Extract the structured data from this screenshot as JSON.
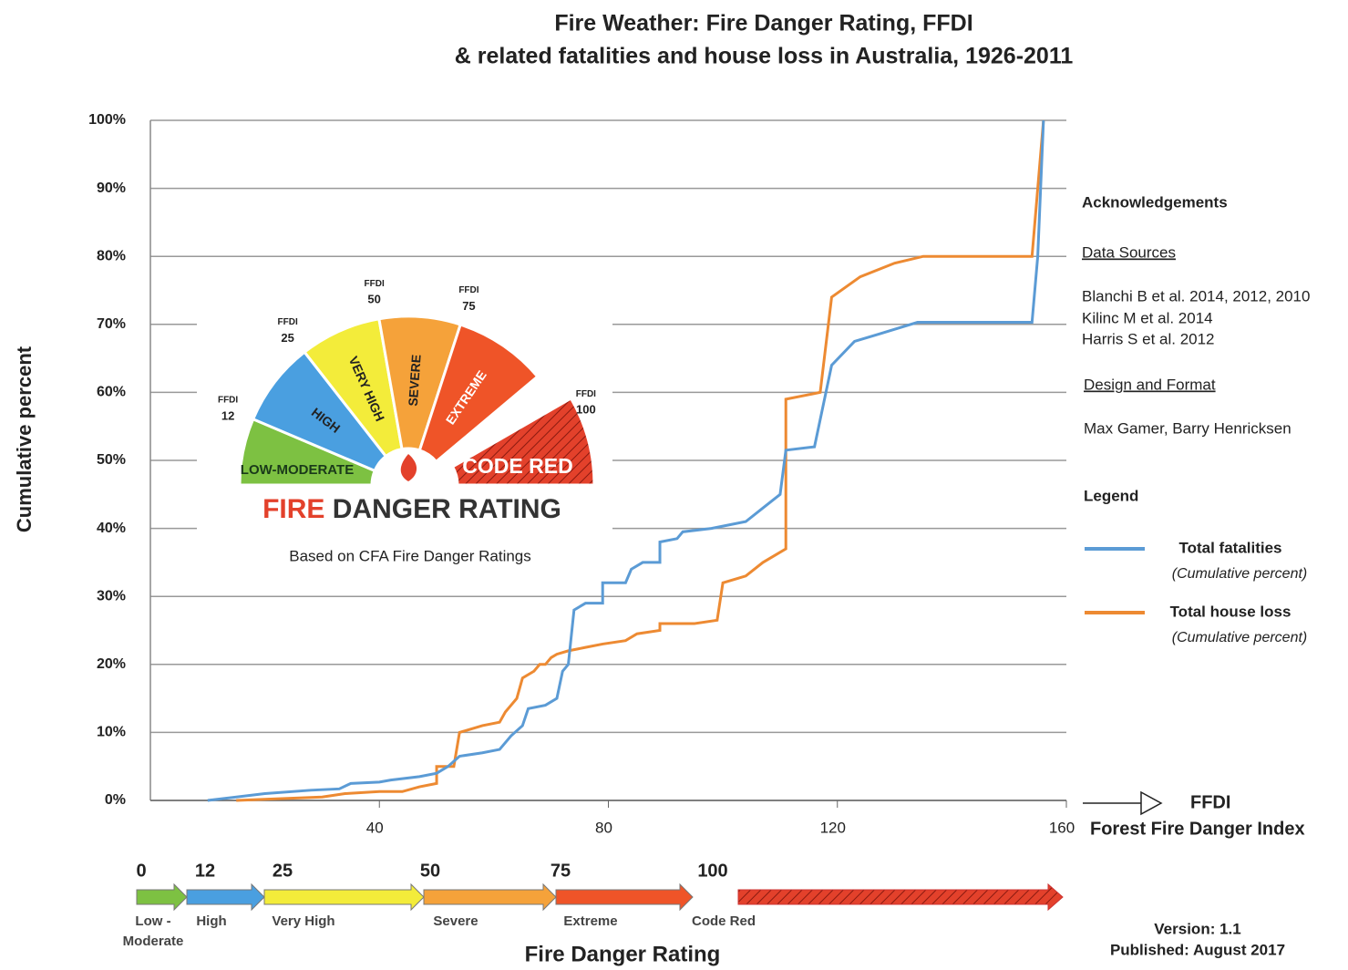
{
  "chart_data": {
    "type": "line",
    "title": "Fire Weather: Fire Danger Rating, FFDI",
    "subtitle": "& related fatalities and house loss in Australia, 1926-2011",
    "y_label": "Cumulative percent",
    "x_label": "FFDI",
    "x_label_long": "Forest Fire Danger Index",
    "xlim": [
      0,
      160
    ],
    "ylim": [
      0,
      100
    ],
    "xticks": [
      40,
      80,
      120,
      160
    ],
    "yticks": [
      {
        "value": 0,
        "label": "0%"
      },
      {
        "value": 10,
        "label": "10%"
      },
      {
        "value": 20,
        "label": "20%"
      },
      {
        "value": 30,
        "label": "30%"
      },
      {
        "value": 40,
        "label": "40%"
      },
      {
        "value": 50,
        "label": "50%"
      },
      {
        "value": 60,
        "label": "60%"
      },
      {
        "value": 70,
        "label": "70%"
      },
      {
        "value": 80,
        "label": "80%"
      },
      {
        "value": 90,
        "label": "90%"
      },
      {
        "value": 100,
        "label": "100%"
      }
    ],
    "grid": true,
    "series": [
      {
        "name": "Total fatalities",
        "note": "(Cumulative percent)",
        "color": "#5b9bd5",
        "x": [
          10,
          20,
          28,
          33,
          35,
          40,
          42,
          47,
          50,
          52,
          54,
          58,
          61,
          63,
          65,
          66,
          69,
          71,
          72,
          73,
          74,
          76,
          79,
          79,
          83,
          84,
          86,
          89,
          89,
          92,
          93,
          98,
          101,
          104,
          107,
          110,
          111,
          116,
          119,
          123,
          127,
          134,
          154,
          155,
          156
        ],
        "values": [
          0,
          1,
          1.5,
          1.7,
          2.5,
          2.7,
          3,
          3.5,
          4,
          5,
          6.5,
          7,
          7.5,
          9.5,
          11,
          13.5,
          14,
          15,
          19,
          20,
          28,
          29,
          29,
          32,
          32,
          34,
          35,
          35,
          38,
          38.5,
          39.5,
          40,
          40.5,
          41,
          43,
          45,
          51.5,
          52,
          64,
          67.5,
          68.5,
          70.3,
          70.3,
          80,
          100
        ]
      },
      {
        "name": "Total house loss",
        "note": "(Cumulative percent)",
        "color": "#ed8a32",
        "x": [
          15,
          30,
          34,
          40,
          44,
          47,
          50,
          50,
          53,
          54,
          58,
          61,
          62,
          63,
          64,
          65,
          67,
          68,
          69,
          70,
          71,
          73,
          76,
          79,
          83,
          85,
          89,
          89,
          95,
          99,
          100,
          104,
          107,
          111,
          111,
          117,
          119,
          124,
          130,
          135,
          154,
          156
        ],
        "values": [
          0,
          0.5,
          1,
          1.3,
          1.3,
          2,
          2.5,
          5,
          5,
          10,
          11,
          11.5,
          13,
          14,
          15,
          18,
          19,
          20,
          20,
          21,
          21.5,
          22,
          22.5,
          23,
          23.5,
          24.5,
          25,
          26,
          26,
          26.5,
          32,
          33,
          35,
          37,
          59,
          60,
          74,
          77,
          79,
          80,
          80,
          100
        ]
      }
    ],
    "rating_scale_title": "Fire Danger Rating",
    "rating_scale": [
      {
        "ffdi": 0,
        "label": "Low -",
        "label2": "Moderate",
        "gauge_label": "LOW-MODERATE",
        "color": "#7dc142"
      },
      {
        "ffdi": 12,
        "label": "High",
        "gauge_label": "HIGH",
        "color": "#4a9fe0"
      },
      {
        "ffdi": 25,
        "label": "Very High",
        "gauge_label": "VERY HIGH",
        "color": "#f3ec3a"
      },
      {
        "ffdi": 50,
        "label": "Severe",
        "gauge_label": "SEVERE",
        "color": "#f5a23a"
      },
      {
        "ffdi": 75,
        "label": "Extreme",
        "gauge_label": "EXTREME",
        "color": "#ef5428"
      },
      {
        "ffdi": 100,
        "label": "Code Red",
        "gauge_label": "CODE RED",
        "color": "#e3412b"
      }
    ],
    "gauge_ffdi_label": "FFDI",
    "gauge_title_1": "FIRE",
    "gauge_title_2": "DANGER RATING",
    "gauge_note": "Based on CFA Fire Danger Ratings",
    "legend_title": "Legend",
    "acknowledgements": "Acknowledgements",
    "data_sources_title": "Data Sources",
    "data_sources": [
      "Blanchi B et al. 2014, 2012, 2010",
      "Kilinc M et al. 2014",
      "Harris S et al. 2012"
    ],
    "design_title": "Design and Format",
    "design": "Max Gamer, Barry Henricksen",
    "version": "Version: 1.1",
    "published": "Published: August 2017"
  }
}
